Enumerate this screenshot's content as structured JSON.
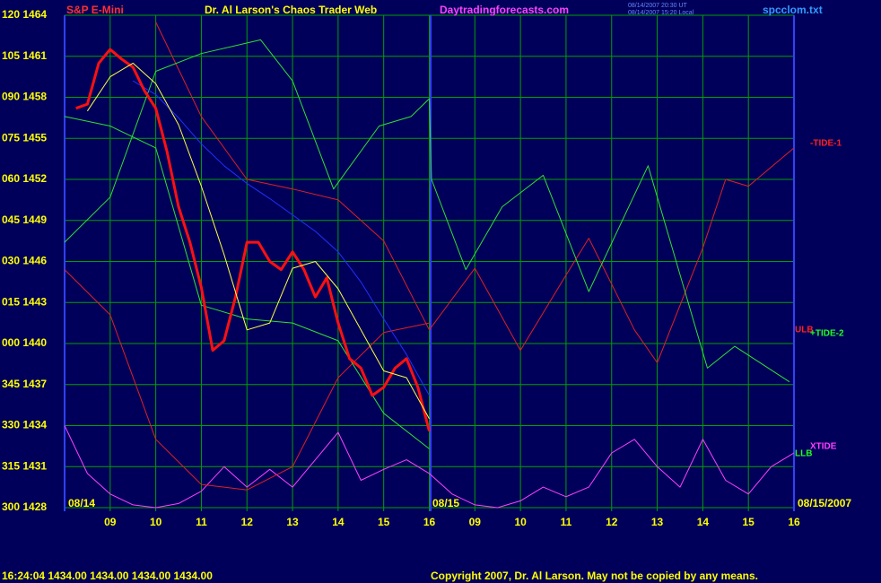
{
  "chart_data": {
    "type": "line",
    "title": "Dr. Al Larson's Chaos Trader Web",
    "symbol": "S&P E-Mini",
    "website": "Daytradingforecasts.com",
    "timestamp_lines": [
      "08/14/2007 20:30 UT",
      "08/14/2007 15:20 Local"
    ],
    "file_name": "spcclom.txt",
    "date_labels": [
      "08/14",
      "08/15",
      "08/15/2007"
    ],
    "status_line": "16:24:04  1434.00 1434.00 1434.00 1434.00",
    "copyright": "Copyright 2007, Dr. Al Larson. May not be copied by any means.",
    "right_labels": [
      {
        "text": "-TIDE-1",
        "color": "#ff2020"
      },
      {
        "text": "ULB",
        "color": "#ff2020"
      },
      {
        "text": "+TIDE-2",
        "color": "#20ff20"
      },
      {
        "text": "XTIDE",
        "color": "#ff40ff"
      },
      {
        "text": "LLB",
        "color": "#20ff20"
      }
    ],
    "grid": true,
    "xlim": [
      0,
      16
    ],
    "xticks": [
      {
        "value": 1,
        "label": "09"
      },
      {
        "value": 2,
        "label": "10"
      },
      {
        "value": 3,
        "label": "11"
      },
      {
        "value": 4,
        "label": "12"
      },
      {
        "value": 5,
        "label": "13"
      },
      {
        "value": 6,
        "label": "14"
      },
      {
        "value": 7,
        "label": "15"
      },
      {
        "value": 8,
        "label": "16"
      },
      {
        "value": 9,
        "label": "09"
      },
      {
        "value": 10,
        "label": "10"
      },
      {
        "value": 11,
        "label": "11"
      },
      {
        "value": 12,
        "label": "12"
      },
      {
        "value": 13,
        "label": "13"
      },
      {
        "value": 14,
        "label": "14"
      },
      {
        "value": 15,
        "label": "15"
      },
      {
        "value": 16,
        "label": "16"
      }
    ],
    "ylim": [
      1428,
      1464
    ],
    "yticks": [
      {
        "value": 1464,
        "label": "120 1464"
      },
      {
        "value": 1461,
        "label": "105 1461"
      },
      {
        "value": 1458,
        "label": "090 1458"
      },
      {
        "value": 1455,
        "label": "075 1455"
      },
      {
        "value": 1452,
        "label": "060 1452"
      },
      {
        "value": 1449,
        "label": "045 1449"
      },
      {
        "value": 1446,
        "label": "030 1446"
      },
      {
        "value": 1443,
        "label": "015 1443"
      },
      {
        "value": 1440,
        "label": "000 1440"
      },
      {
        "value": 1437,
        "label": "345 1437"
      },
      {
        "value": 1434,
        "label": "330 1434"
      },
      {
        "value": 1431,
        "label": "315 1431"
      },
      {
        "value": 1428,
        "label": "300 1428"
      }
    ],
    "series": [
      {
        "color": "#ff40ff",
        "width": 1,
        "x": [
          0,
          0.5,
          1,
          1.5,
          2,
          2.5,
          3,
          3.5,
          4,
          4.5,
          5,
          5.5,
          6,
          6.5,
          7,
          7.5,
          8,
          8.5,
          9,
          9.5,
          10,
          10.5,
          11,
          11.5,
          12,
          12.5,
          13,
          13.5,
          14,
          14.5,
          15,
          15.5,
          16
        ],
        "values": [
          1434,
          1430.5,
          1429,
          1428.2,
          1428,
          1428.3,
          1429.2,
          1431,
          1429.5,
          1430.8,
          1429.5,
          1431.5,
          1433.5,
          1430,
          1430.8,
          1431.5,
          1430.5,
          1429,
          1428.2,
          1428,
          1428.5,
          1429.5,
          1428.8,
          1429.5,
          1432,
          1433,
          1431,
          1429.5,
          1433,
          1430,
          1429,
          1431,
          1432
        ]
      },
      {
        "color": "#e02020",
        "width": 1,
        "x": [
          2,
          3,
          4,
          5,
          6,
          7,
          8,
          9,
          10,
          11,
          11.5,
          12.5,
          13,
          14,
          14.5,
          15,
          16
        ],
        "values": [
          1463.5,
          1456.6,
          1452,
          1451.3,
          1450.5,
          1447.5,
          1441,
          1445.5,
          1439.5,
          1445,
          1447.7,
          1441,
          1438.6,
          1447,
          1452,
          1451.5,
          1454.3
        ]
      },
      {
        "color": "#e02020",
        "width": 1,
        "x": [
          0,
          1,
          2,
          3,
          4,
          5,
          6,
          7,
          8
        ],
        "values": [
          1445.4,
          1442.1,
          1433,
          1429.7,
          1429.3,
          1431,
          1437.5,
          1440.8,
          1441.5
        ]
      },
      {
        "color": "#30e030",
        "width": 1,
        "x": [
          0,
          1,
          2,
          3,
          4.3,
          5,
          5.9,
          6.9,
          7.6,
          8,
          8.05,
          8.8,
          9.6,
          10.5,
          11.5,
          12.8,
          14.1,
          14.7,
          15.9
        ],
        "values": [
          1447.4,
          1450.7,
          1459.9,
          1461.2,
          1462.2,
          1459.2,
          1451.3,
          1455.9,
          1456.6,
          1457.9,
          1452,
          1445.4,
          1450,
          1452.3,
          1443.8,
          1453,
          1438.2,
          1439.8,
          1437.2
        ]
      },
      {
        "color": "#30e030",
        "width": 1,
        "x": [
          0,
          1,
          2,
          3,
          4,
          5,
          6,
          7,
          8
        ],
        "values": [
          1456.6,
          1455.9,
          1454.3,
          1442.8,
          1441.8,
          1441.5,
          1440.2,
          1434.9,
          1432.3
        ]
      },
      {
        "color": "#2030ff",
        "width": 1,
        "x": [
          1.5,
          2,
          2.5,
          3,
          3.5,
          4,
          4.5,
          5,
          5.5,
          6,
          6.5,
          7,
          7.5,
          8
        ],
        "values": [
          1459.2,
          1458.2,
          1456.5,
          1454.6,
          1453,
          1451.7,
          1450.6,
          1449.4,
          1448.2,
          1446.7,
          1444.5,
          1441.8,
          1439.2,
          1436.2
        ]
      },
      {
        "color": "#ff1010",
        "width": 3,
        "x": [
          0.25,
          0.5,
          0.75,
          1,
          1.25,
          1.5,
          1.75,
          2,
          2.25,
          2.5,
          2.75,
          3,
          3.25,
          3.5,
          3.75,
          4,
          4.25,
          4.5,
          4.75,
          5,
          5.25,
          5.5,
          5.75,
          6,
          6.25,
          6.5,
          6.75,
          7,
          7.25,
          7.5,
          7.75,
          8
        ],
        "values": [
          1457.2,
          1457.5,
          1460.5,
          1461.5,
          1460.8,
          1460.2,
          1458.5,
          1457.2,
          1454,
          1450,
          1447.4,
          1444.1,
          1439.5,
          1440.2,
          1443.4,
          1447.4,
          1447.4,
          1446,
          1445.4,
          1446.7,
          1445.4,
          1443.4,
          1444.8,
          1441.5,
          1438.9,
          1438.2,
          1436.2,
          1436.8,
          1438.2,
          1438.9,
          1436.8,
          1433.6
        ]
      },
      {
        "color": "#ffff40",
        "width": 1,
        "x": [
          0.5,
          1,
          1.5,
          2,
          2.5,
          3,
          3.5,
          4,
          4.5,
          5,
          5.5,
          6,
          6.5,
          7,
          7.5,
          8
        ],
        "values": [
          1457,
          1459.5,
          1460.5,
          1459,
          1456,
          1451.5,
          1446.5,
          1441,
          1441.5,
          1445.5,
          1446,
          1444,
          1441,
          1438,
          1437.5,
          1434.5
        ]
      }
    ]
  }
}
